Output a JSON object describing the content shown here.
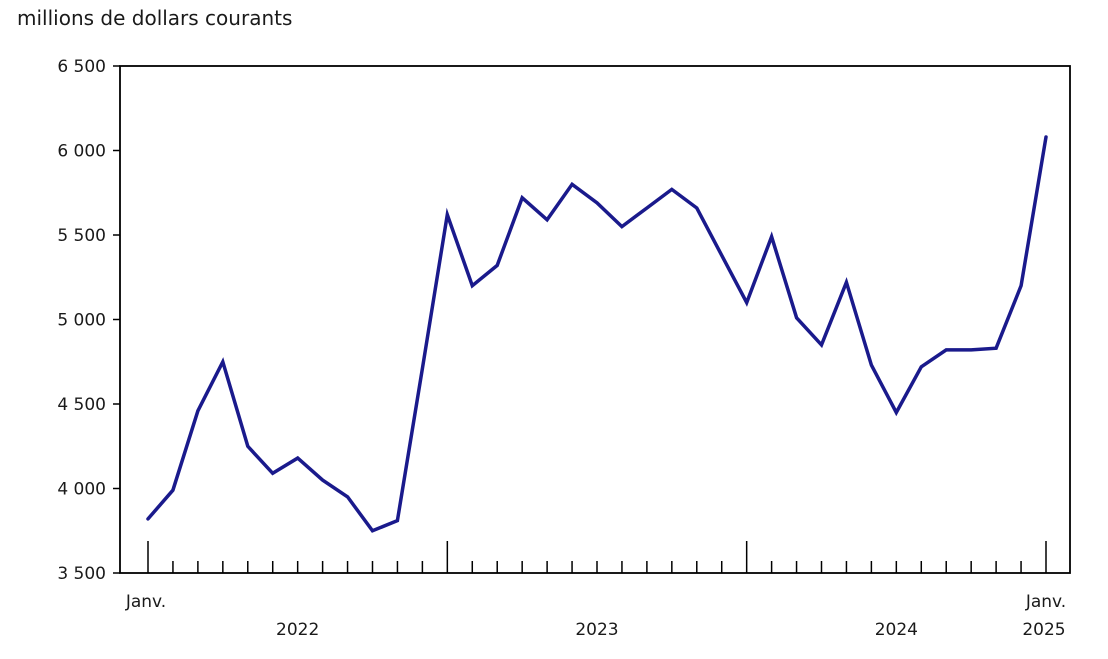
{
  "title": "millions de dollars courants",
  "chart_data": {
    "type": "line",
    "title": "millions de dollars courants",
    "ylabel": "millions de dollars courants",
    "ylim": [
      3500,
      6500
    ],
    "y_tick_values": [
      6500,
      6000,
      5500,
      5000,
      4500,
      4000,
      3500
    ],
    "y_tick_labels": [
      "6 500",
      "6 000",
      "5 500",
      "5 000",
      "4 500",
      "4 000",
      "3 500"
    ],
    "grid": "off",
    "legend": "none",
    "line_color": "#1a1a8c",
    "axis_color": "#000000",
    "text_color": "#1a1a1a",
    "x_axis": {
      "tick_interval": "month",
      "long_tick_every": 12,
      "start_month_label": "Janv.",
      "end_month_label": "Janv.",
      "end_year_label": "2025",
      "year_labels": [
        "2022",
        "2023",
        "2024"
      ]
    },
    "months": [
      "2022-01",
      "2022-02",
      "2022-03",
      "2022-04",
      "2022-05",
      "2022-06",
      "2022-07",
      "2022-08",
      "2022-09",
      "2022-10",
      "2022-11",
      "2022-12",
      "2023-01",
      "2023-02",
      "2023-03",
      "2023-04",
      "2023-05",
      "2023-06",
      "2023-07",
      "2023-08",
      "2023-09",
      "2023-10",
      "2023-11",
      "2023-12",
      "2024-01",
      "2024-02",
      "2024-03",
      "2024-04",
      "2024-05",
      "2024-06",
      "2024-07",
      "2024-08",
      "2024-09",
      "2024-10",
      "2024-11",
      "2024-12",
      "2025-01"
    ],
    "values": [
      3820,
      3990,
      4460,
      4750,
      4250,
      4090,
      4180,
      4050,
      3950,
      3750,
      3810,
      4710,
      5620,
      5200,
      5320,
      5720,
      5590,
      5800,
      5690,
      5550,
      5660,
      5770,
      5660,
      5380,
      5100,
      5490,
      5010,
      4850,
      5220,
      4730,
      4450,
      4720,
      4820,
      4820,
      4830,
      5200,
      6080
    ]
  }
}
